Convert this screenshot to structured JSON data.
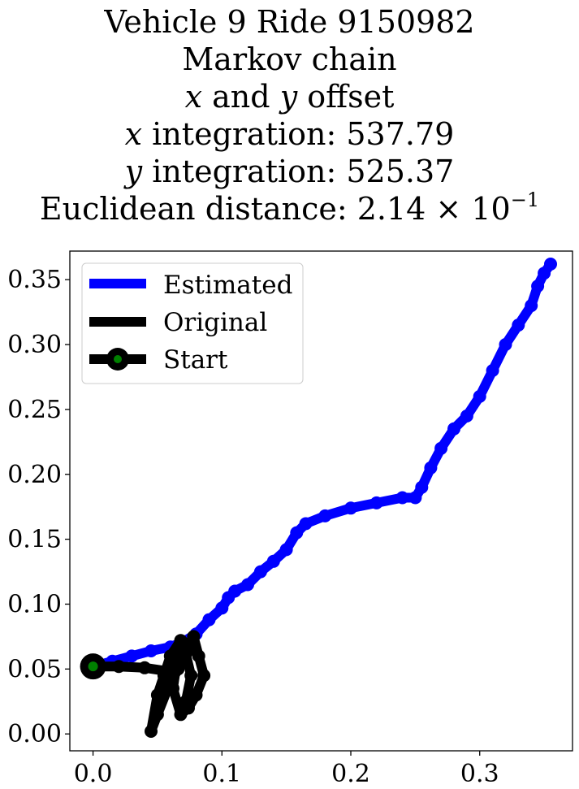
{
  "title": {
    "line1": "Vehicle 9 Ride 9150982",
    "line2": "Markov chain",
    "line3_var_x": "x",
    "line3_mid": " and ",
    "line3_var_y": "y",
    "line3_tail": " offset",
    "line4_var": "x",
    "line4_text": " integration: 537.79",
    "line5_var": "y",
    "line5_text": " integration: 525.37",
    "line6_text": "Euclidean distance: 2.14 × 10",
    "line6_exp": "−1"
  },
  "chart_data": {
    "type": "line",
    "xlim": [
      -0.018,
      0.372
    ],
    "ylim": [
      -0.013,
      0.372
    ],
    "xticks": [
      0.0,
      0.1,
      0.2,
      0.3
    ],
    "xtick_labels": [
      "0.0",
      "0.1",
      "0.2",
      "0.3"
    ],
    "yticks": [
      0.0,
      0.05,
      0.1,
      0.15,
      0.2,
      0.25,
      0.3,
      0.35
    ],
    "ytick_labels": [
      "0.00",
      "0.05",
      "0.10",
      "0.15",
      "0.20",
      "0.25",
      "0.30",
      "0.35"
    ],
    "grid": false,
    "legend_position": "top-left",
    "colors": {
      "estimated": "#0000ff",
      "original": "#000000",
      "start_fill": "#008000"
    },
    "series": [
      {
        "name": "Estimated",
        "x": [
          0.0,
          0.015,
          0.03,
          0.045,
          0.06,
          0.07,
          0.08,
          0.09,
          0.1,
          0.105,
          0.11,
          0.12,
          0.13,
          0.14,
          0.15,
          0.158,
          0.165,
          0.18,
          0.2,
          0.22,
          0.24,
          0.25,
          0.255,
          0.262,
          0.27,
          0.28,
          0.29,
          0.3,
          0.31,
          0.32,
          0.33,
          0.34,
          0.345,
          0.35,
          0.355
        ],
        "y": [
          0.052,
          0.056,
          0.06,
          0.064,
          0.067,
          0.071,
          0.077,
          0.088,
          0.097,
          0.105,
          0.11,
          0.115,
          0.125,
          0.133,
          0.142,
          0.155,
          0.162,
          0.168,
          0.174,
          0.178,
          0.182,
          0.182,
          0.19,
          0.205,
          0.22,
          0.235,
          0.245,
          0.26,
          0.28,
          0.3,
          0.315,
          0.33,
          0.345,
          0.355,
          0.362
        ]
      },
      {
        "name": "Original",
        "x": [
          0.0,
          0.02,
          0.04,
          0.06,
          0.07,
          0.075,
          0.068,
          0.06,
          0.055,
          0.05,
          0.045,
          0.05,
          0.058,
          0.066,
          0.072,
          0.078,
          0.082,
          0.086,
          0.08,
          0.074,
          0.068,
          0.062,
          0.065,
          0.07,
          0.076,
          0.072
        ],
        "y": [
          0.052,
          0.052,
          0.051,
          0.048,
          0.055,
          0.065,
          0.072,
          0.06,
          0.045,
          0.03,
          0.002,
          0.015,
          0.035,
          0.05,
          0.065,
          0.075,
          0.06,
          0.045,
          0.03,
          0.02,
          0.015,
          0.035,
          0.055,
          0.07,
          0.045,
          0.025
        ]
      }
    ],
    "start": {
      "name": "Start",
      "x": 0.0,
      "y": 0.052
    }
  }
}
